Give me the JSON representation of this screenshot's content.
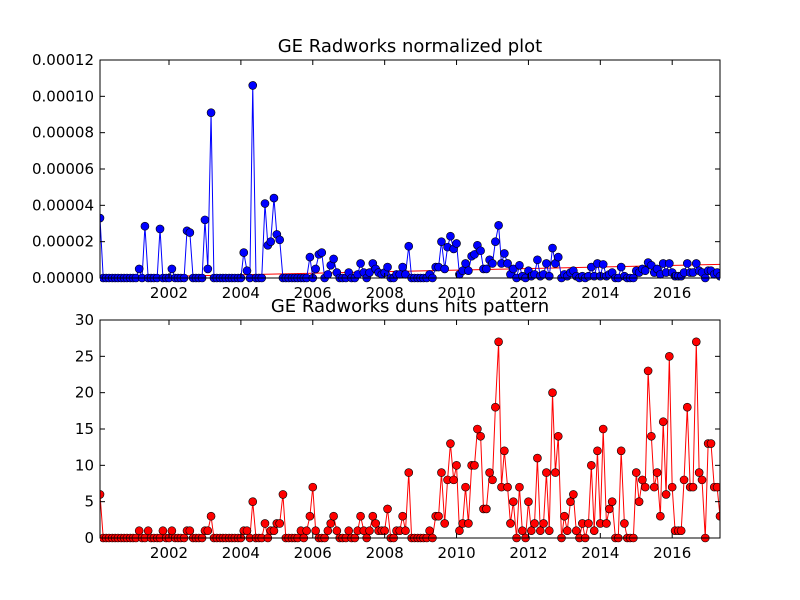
{
  "chart_data": [
    {
      "type": "line",
      "title": "GE Radworks normalized plot",
      "x": [
        2000.08,
        2000.17,
        2000.25,
        2000.33,
        2000.42,
        2000.5,
        2000.58,
        2000.67,
        2000.75,
        2000.83,
        2000.92,
        2001,
        2001.08,
        2001.17,
        2001.25,
        2001.33,
        2001.42,
        2001.5,
        2001.58,
        2001.67,
        2001.75,
        2001.83,
        2001.92,
        2002,
        2002.08,
        2002.17,
        2002.25,
        2002.33,
        2002.42,
        2002.5,
        2002.58,
        2002.67,
        2002.75,
        2002.83,
        2002.92,
        2003,
        2003.08,
        2003.17,
        2003.25,
        2003.33,
        2003.42,
        2003.5,
        2003.58,
        2003.67,
        2003.75,
        2003.83,
        2003.92,
        2004,
        2004.08,
        2004.17,
        2004.25,
        2004.33,
        2004.42,
        2004.5,
        2004.58,
        2004.67,
        2004.75,
        2004.83,
        2004.92,
        2005,
        2005.08,
        2005.17,
        2005.25,
        2005.33,
        2005.42,
        2005.5,
        2005.58,
        2005.67,
        2005.75,
        2005.83,
        2005.92,
        2006,
        2006.08,
        2006.17,
        2006.25,
        2006.33,
        2006.42,
        2006.5,
        2006.58,
        2006.67,
        2006.75,
        2006.83,
        2006.92,
        2007,
        2007.08,
        2007.17,
        2007.25,
        2007.33,
        2007.42,
        2007.5,
        2007.58,
        2007.67,
        2007.75,
        2007.83,
        2007.92,
        2008,
        2008.08,
        2008.17,
        2008.25,
        2008.33,
        2008.42,
        2008.5,
        2008.58,
        2008.67,
        2008.75,
        2008.83,
        2008.92,
        2009,
        2009.08,
        2009.17,
        2009.25,
        2009.33,
        2009.42,
        2009.5,
        2009.58,
        2009.67,
        2009.75,
        2009.83,
        2009.92,
        2010,
        2010.08,
        2010.17,
        2010.25,
        2010.33,
        2010.42,
        2010.5,
        2010.58,
        2010.67,
        2010.75,
        2010.83,
        2010.92,
        2011,
        2011.08,
        2011.17,
        2011.25,
        2011.33,
        2011.42,
        2011.5,
        2011.58,
        2011.67,
        2011.75,
        2011.83,
        2011.92,
        2012,
        2012.08,
        2012.17,
        2012.25,
        2012.33,
        2012.42,
        2012.5,
        2012.58,
        2012.67,
        2012.75,
        2012.83,
        2012.92,
        2013,
        2013.08,
        2013.17,
        2013.25,
        2013.33,
        2013.42,
        2013.5,
        2013.58,
        2013.67,
        2013.75,
        2013.83,
        2013.92,
        2014,
        2014.08,
        2014.17,
        2014.25,
        2014.33,
        2014.42,
        2014.5,
        2014.58,
        2014.67,
        2014.75,
        2014.83,
        2014.92,
        2015,
        2015.08,
        2015.17,
        2015.25,
        2015.33,
        2015.42,
        2015.5,
        2015.58,
        2015.67,
        2015.75,
        2015.83,
        2015.92,
        2016,
        2016.08,
        2016.17,
        2016.25,
        2016.33,
        2016.42,
        2016.5,
        2016.58,
        2016.67,
        2016.75,
        2016.83,
        2016.92,
        2017,
        2017.08,
        2017.17,
        2017.25,
        2017.33
      ],
      "series": [
        {
          "color": "#0000ff",
          "values": [
            3.3e-05,
            0,
            0,
            0,
            0,
            0,
            0,
            0,
            0,
            0,
            0,
            0,
            0,
            5e-06,
            0,
            2.85e-05,
            0,
            0,
            0,
            0,
            2.7e-05,
            0,
            0,
            0,
            5e-06,
            0,
            0,
            0,
            0,
            2.6e-05,
            2.5e-05,
            0,
            0,
            0,
            0,
            3.2e-05,
            5e-06,
            9.1e-05,
            0,
            0,
            0,
            0,
            0,
            0,
            0,
            0,
            0,
            0,
            1.4e-05,
            4e-06,
            0,
            0.000106,
            0,
            0,
            0,
            4.1e-05,
            1.8e-05,
            2e-05,
            4.4e-05,
            2.4e-05,
            2.1e-05,
            0,
            0,
            0,
            0,
            0,
            0,
            0,
            0,
            0,
            1.15e-05,
            0,
            5e-06,
            1.3e-05,
            1.4e-05,
            0,
            2e-06,
            7e-06,
            1.05e-05,
            3e-06,
            0,
            0,
            0,
            3e-06,
            0,
            0,
            2e-06,
            8e-06,
            3e-06,
            0,
            3e-06,
            8e-06,
            5e-06,
            3e-06,
            2e-06,
            3e-06,
            6e-06,
            0,
            0,
            2e-06,
            2e-06,
            6e-06,
            2e-06,
            1.75e-05,
            0,
            0,
            0,
            0,
            0,
            0,
            2e-06,
            0,
            6e-06,
            6e-06,
            2e-05,
            5e-06,
            1.7e-05,
            2.3e-05,
            1.6e-05,
            1.9e-05,
            2e-06,
            4e-06,
            8e-06,
            4e-06,
            1.2e-05,
            1.3e-05,
            1.8e-05,
            1.5e-05,
            5e-06,
            5e-06,
            1e-05,
            8e-06,
            2e-05,
            2.9e-05,
            8e-06,
            1.35e-05,
            8e-06,
            2e-06,
            5e-06,
            0,
            7e-06,
            1e-06,
            0,
            4e-06,
            1e-06,
            2e-06,
            1e-05,
            1e-06,
            2e-06,
            8e-06,
            1e-06,
            1.65e-05,
            8e-06,
            1.15e-05,
            0,
            2e-06,
            1e-06,
            3e-06,
            4e-06,
            1e-06,
            0,
            1e-06,
            0,
            1e-06,
            6e-06,
            1e-06,
            8e-06,
            1e-06,
            7.5e-06,
            1e-06,
            2e-06,
            3e-06,
            0,
            0,
            6e-06,
            1e-06,
            0,
            0,
            0,
            4e-06,
            3e-06,
            5e-06,
            4e-06,
            8.5e-06,
            7e-06,
            3e-06,
            5e-06,
            2e-06,
            8e-06,
            3e-06,
            8e-06,
            3e-06,
            1e-06,
            1e-06,
            1e-06,
            3e-06,
            8e-06,
            3e-06,
            3e-06,
            8e-06,
            4e-06,
            3e-06,
            0,
            4e-06,
            4e-06,
            2e-06,
            3e-06,
            1e-06
          ]
        }
      ],
      "trend": {
        "x": [
          2000.08,
          2017.33
        ],
        "values": [
          1e-07,
          7.5e-06
        ],
        "color": "#ff0000"
      },
      "xlim": [
        2000.08,
        2017.33
      ],
      "xticks": [
        2002,
        2004,
        2006,
        2008,
        2010,
        2012,
        2014,
        2016
      ],
      "ylim": [
        0,
        0.00012
      ],
      "yticks": [
        {
          "value": 0,
          "label": "0.00000"
        },
        {
          "value": 2e-05,
          "label": "0.00002"
        },
        {
          "value": 4e-05,
          "label": "0.00004"
        },
        {
          "value": 6e-05,
          "label": "0.00006"
        },
        {
          "value": 8e-05,
          "label": "0.00008"
        },
        {
          "value": 0.0001,
          "label": "0.00010"
        },
        {
          "value": 0.00012,
          "label": "0.00012"
        }
      ]
    },
    {
      "type": "line",
      "title": "GE Radworks duns hits pattern",
      "x": [
        2000.08,
        2000.17,
        2000.25,
        2000.33,
        2000.42,
        2000.5,
        2000.58,
        2000.67,
        2000.75,
        2000.83,
        2000.92,
        2001,
        2001.08,
        2001.17,
        2001.25,
        2001.33,
        2001.42,
        2001.5,
        2001.58,
        2001.67,
        2001.75,
        2001.83,
        2001.92,
        2002,
        2002.08,
        2002.17,
        2002.25,
        2002.33,
        2002.42,
        2002.5,
        2002.58,
        2002.67,
        2002.75,
        2002.83,
        2002.92,
        2003,
        2003.08,
        2003.17,
        2003.25,
        2003.33,
        2003.42,
        2003.5,
        2003.58,
        2003.67,
        2003.75,
        2003.83,
        2003.92,
        2004,
        2004.08,
        2004.17,
        2004.25,
        2004.33,
        2004.42,
        2004.5,
        2004.58,
        2004.67,
        2004.75,
        2004.83,
        2004.92,
        2005,
        2005.08,
        2005.17,
        2005.25,
        2005.33,
        2005.42,
        2005.5,
        2005.58,
        2005.67,
        2005.75,
        2005.83,
        2005.92,
        2006,
        2006.08,
        2006.17,
        2006.25,
        2006.33,
        2006.42,
        2006.5,
        2006.58,
        2006.67,
        2006.75,
        2006.83,
        2006.92,
        2007,
        2007.08,
        2007.17,
        2007.25,
        2007.33,
        2007.42,
        2007.5,
        2007.58,
        2007.67,
        2007.75,
        2007.83,
        2007.92,
        2008,
        2008.08,
        2008.17,
        2008.25,
        2008.33,
        2008.42,
        2008.5,
        2008.58,
        2008.67,
        2008.75,
        2008.83,
        2008.92,
        2009,
        2009.08,
        2009.17,
        2009.25,
        2009.33,
        2009.42,
        2009.5,
        2009.58,
        2009.67,
        2009.75,
        2009.83,
        2009.92,
        2010,
        2010.08,
        2010.17,
        2010.25,
        2010.33,
        2010.42,
        2010.5,
        2010.58,
        2010.67,
        2010.75,
        2010.83,
        2010.92,
        2011,
        2011.08,
        2011.17,
        2011.25,
        2011.33,
        2011.42,
        2011.5,
        2011.58,
        2011.67,
        2011.75,
        2011.83,
        2011.92,
        2012,
        2012.08,
        2012.17,
        2012.25,
        2012.33,
        2012.42,
        2012.5,
        2012.58,
        2012.67,
        2012.75,
        2012.83,
        2012.92,
        2013,
        2013.08,
        2013.17,
        2013.25,
        2013.33,
        2013.42,
        2013.5,
        2013.58,
        2013.67,
        2013.75,
        2013.83,
        2013.92,
        2014,
        2014.08,
        2014.17,
        2014.25,
        2014.33,
        2014.42,
        2014.5,
        2014.58,
        2014.67,
        2014.75,
        2014.83,
        2014.92,
        2015,
        2015.08,
        2015.17,
        2015.25,
        2015.33,
        2015.42,
        2015.5,
        2015.58,
        2015.67,
        2015.75,
        2015.83,
        2015.92,
        2016,
        2016.08,
        2016.17,
        2016.25,
        2016.33,
        2016.42,
        2016.5,
        2016.58,
        2016.67,
        2016.75,
        2016.83,
        2016.92,
        2017,
        2017.08,
        2017.17,
        2017.25,
        2017.33
      ],
      "series": [
        {
          "color": "#ff0000",
          "values": [
            6,
            0,
            0,
            0,
            0,
            0,
            0,
            0,
            0,
            0,
            0,
            0,
            0,
            1,
            0,
            0,
            1,
            0,
            0,
            0,
            0,
            1,
            0,
            0,
            1,
            0,
            0,
            0,
            0,
            1,
            1,
            0,
            0,
            0,
            0,
            1,
            1,
            3,
            0,
            0,
            0,
            0,
            0,
            0,
            0,
            0,
            0,
            0,
            1,
            1,
            0,
            5,
            0,
            0,
            0,
            2,
            0,
            1,
            1,
            2,
            2,
            6,
            0,
            0,
            0,
            0,
            0,
            1,
            0,
            1,
            3,
            7,
            1,
            0,
            0,
            0,
            1,
            2,
            3,
            1,
            0,
            0,
            0,
            1,
            0,
            0,
            1,
            3,
            1,
            0,
            1,
            3,
            2,
            1,
            1,
            1,
            4,
            0,
            0,
            1,
            1,
            3,
            1,
            9,
            0,
            0,
            0,
            0,
            0,
            0,
            1,
            0,
            3,
            3,
            9,
            2,
            8,
            13,
            8,
            10,
            1,
            2,
            7,
            2,
            10,
            10,
            15,
            14,
            4,
            4,
            9,
            8,
            18,
            27,
            7,
            12,
            7,
            2,
            5,
            0,
            7,
            1,
            0,
            5,
            1,
            2,
            11,
            1,
            2,
            9,
            1,
            20,
            9,
            14,
            0,
            3,
            1,
            5,
            6,
            1,
            0,
            2,
            0,
            2,
            10,
            1,
            12,
            2,
            15,
            2,
            4,
            5,
            0,
            0,
            12,
            2,
            0,
            0,
            0,
            9,
            5,
            8,
            7,
            23,
            14,
            7,
            9,
            3,
            16,
            6,
            25,
            7,
            1,
            1,
            1,
            8,
            18,
            7,
            7,
            27,
            9,
            8,
            0,
            13,
            13,
            7,
            7,
            3
          ]
        }
      ],
      "xlim": [
        2000.08,
        2017.33
      ],
      "xticks": [
        2002,
        2004,
        2006,
        2008,
        2010,
        2012,
        2014,
        2016
      ],
      "ylim": [
        0,
        30
      ],
      "yticks": [
        0,
        5,
        10,
        15,
        20,
        25,
        30
      ]
    }
  ]
}
